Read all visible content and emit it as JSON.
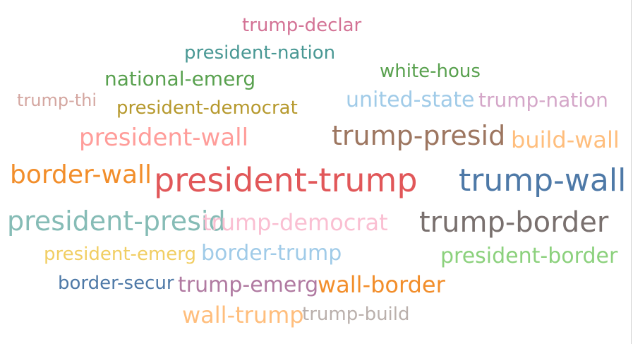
{
  "chart_data": {
    "type": "wordcloud",
    "words": [
      {
        "text": "trump-declar",
        "weight": 2,
        "color": "#d37295"
      },
      {
        "text": "president-nation",
        "weight": 2,
        "color": "#499894"
      },
      {
        "text": "white-hous",
        "weight": 2,
        "color": "#59a14f"
      },
      {
        "text": "national-emerg",
        "weight": 2.2,
        "color": "#59a14f"
      },
      {
        "text": "trump-thi",
        "weight": 1.8,
        "color": "#d4a6a0"
      },
      {
        "text": "president-democrat",
        "weight": 2,
        "color": "#b6992d"
      },
      {
        "text": "united-state",
        "weight": 2.4,
        "color": "#a0cbe8"
      },
      {
        "text": "trump-nation",
        "weight": 2.2,
        "color": "#d4a6c8"
      },
      {
        "text": "president-wall",
        "weight": 2.8,
        "color": "#ff9d9a"
      },
      {
        "text": "trump-presid",
        "weight": 3.3,
        "color": "#9d7660"
      },
      {
        "text": "build-wall",
        "weight": 2.6,
        "color": "#ffbe7d"
      },
      {
        "text": "border-wall",
        "weight": 3,
        "color": "#f28e2b"
      },
      {
        "text": "president-trump",
        "weight": 4,
        "color": "#e15759"
      },
      {
        "text": "trump-wall",
        "weight": 3.8,
        "color": "#4e79a7"
      },
      {
        "text": "president-presid",
        "weight": 3,
        "color": "#86bcb6"
      },
      {
        "text": "trump-democrat",
        "weight": 2.6,
        "color": "#fabfd2"
      },
      {
        "text": "trump-border",
        "weight": 3.3,
        "color": "#79706e"
      },
      {
        "text": "president-emerg",
        "weight": 2.1,
        "color": "#f1ce63"
      },
      {
        "text": "border-trump",
        "weight": 2.4,
        "color": "#a0cbe8"
      },
      {
        "text": "president-border",
        "weight": 2.4,
        "color": "#8cd17d"
      },
      {
        "text": "border-secur",
        "weight": 2.1,
        "color": "#4e79a7"
      },
      {
        "text": "trump-emerg",
        "weight": 2.4,
        "color": "#b07aa1"
      },
      {
        "text": "wall-border",
        "weight": 2.6,
        "color": "#f28e2b"
      },
      {
        "text": "wall-trump",
        "weight": 2.6,
        "color": "#ffbe7d"
      },
      {
        "text": "trump-build",
        "weight": 2,
        "color": "#bab0ac"
      }
    ]
  }
}
